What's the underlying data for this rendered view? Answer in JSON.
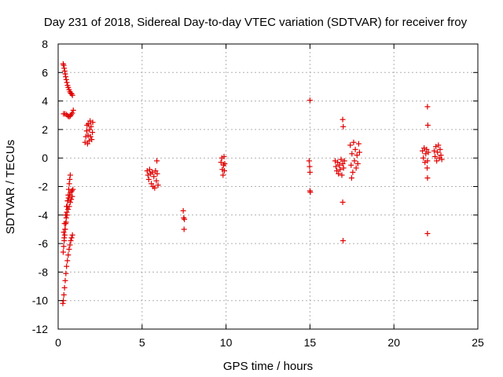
{
  "chart_data": {
    "type": "scatter",
    "title": "Day 231 of 2018, Sidereal Day-to-day VTEC variation (SDTVAR) for receiver froy",
    "xlabel": "GPS time / hours",
    "ylabel": "SDTVAR / TECUs",
    "xlim": [
      0,
      25
    ],
    "ylim": [
      -12,
      8
    ],
    "grid": true,
    "marker": "plus",
    "color": "#e00000",
    "x_ticks": [
      "0",
      "5",
      "10",
      "15",
      "20",
      "25"
    ],
    "y_ticks": [
      "8",
      "6",
      "4",
      "2",
      "0",
      "-2",
      "-4",
      "-6",
      "-8",
      "-10",
      "-12"
    ],
    "series": [
      {
        "name": "SDTVAR",
        "points": [
          [
            0.3,
            6.6
          ],
          [
            0.33,
            6.5
          ],
          [
            0.36,
            6.3
          ],
          [
            0.39,
            6.1
          ],
          [
            0.42,
            5.9
          ],
          [
            0.45,
            5.7
          ],
          [
            0.48,
            5.5
          ],
          [
            0.52,
            5.3
          ],
          [
            0.56,
            5.1
          ],
          [
            0.6,
            4.95
          ],
          [
            0.65,
            4.8
          ],
          [
            0.7,
            4.65
          ],
          [
            0.75,
            4.55
          ],
          [
            0.8,
            4.5
          ],
          [
            0.85,
            4.4
          ],
          [
            0.32,
            3.1
          ],
          [
            0.4,
            3.1
          ],
          [
            0.5,
            3.05
          ],
          [
            0.58,
            2.95
          ],
          [
            0.65,
            2.9
          ],
          [
            0.72,
            2.95
          ],
          [
            0.78,
            3.05
          ],
          [
            0.84,
            3.15
          ],
          [
            0.9,
            3.35
          ],
          [
            0.3,
            -6.6
          ],
          [
            0.33,
            -6.2
          ],
          [
            0.36,
            -5.8
          ],
          [
            0.39,
            -5.4
          ],
          [
            0.42,
            -5.0
          ],
          [
            0.45,
            -4.6
          ],
          [
            0.48,
            -4.2
          ],
          [
            0.51,
            -3.8
          ],
          [
            0.54,
            -3.4
          ],
          [
            0.57,
            -3.0
          ],
          [
            0.6,
            -2.6
          ],
          [
            0.63,
            -2.2
          ],
          [
            0.66,
            -1.8
          ],
          [
            0.69,
            -1.5
          ],
          [
            0.72,
            -1.2
          ],
          [
            0.33,
            -5.2
          ],
          [
            0.38,
            -4.6
          ],
          [
            0.44,
            -4.0
          ],
          [
            0.5,
            -3.4
          ],
          [
            0.56,
            -3.0
          ],
          [
            0.62,
            -2.8
          ],
          [
            0.68,
            -2.6
          ],
          [
            0.75,
            -2.4
          ],
          [
            0.82,
            -2.3
          ],
          [
            0.88,
            -2.2
          ],
          [
            0.28,
            -10.2
          ],
          [
            0.31,
            -10.0
          ],
          [
            0.34,
            -9.6
          ],
          [
            0.38,
            -9.1
          ],
          [
            0.42,
            -8.6
          ],
          [
            0.46,
            -8.1
          ],
          [
            0.5,
            -7.6
          ],
          [
            0.55,
            -7.2
          ],
          [
            0.6,
            -6.8
          ],
          [
            0.65,
            -6.4
          ],
          [
            0.7,
            -6.1
          ],
          [
            0.75,
            -5.8
          ],
          [
            0.8,
            -5.6
          ],
          [
            0.85,
            -5.4
          ],
          [
            0.36,
            -5.6
          ],
          [
            0.41,
            -5.0
          ],
          [
            0.47,
            -4.5
          ],
          [
            0.53,
            -4.0
          ],
          [
            0.59,
            -3.6
          ],
          [
            0.66,
            -3.4
          ],
          [
            0.72,
            -3.1
          ],
          [
            0.78,
            -2.9
          ],
          [
            0.84,
            -2.7
          ],
          [
            1.6,
            1.1
          ],
          [
            1.65,
            1.5
          ],
          [
            1.7,
            1.9
          ],
          [
            1.72,
            2.3
          ],
          [
            1.75,
            1.0
          ],
          [
            1.78,
            1.6
          ],
          [
            1.8,
            2.4
          ],
          [
            1.84,
            1.2
          ],
          [
            1.87,
            2.0
          ],
          [
            1.9,
            2.6
          ],
          [
            1.93,
            1.5
          ],
          [
            1.96,
            2.2
          ],
          [
            2.0,
            1.3
          ],
          [
            2.04,
            1.8
          ],
          [
            2.06,
            2.5
          ],
          [
            5.3,
            -0.9
          ],
          [
            5.35,
            -1.2
          ],
          [
            5.4,
            -1.5
          ],
          [
            5.45,
            -0.8
          ],
          [
            5.5,
            -1.1
          ],
          [
            5.55,
            -1.8
          ],
          [
            5.6,
            -1.0
          ],
          [
            5.65,
            -2.0
          ],
          [
            5.7,
            -1.3
          ],
          [
            5.75,
            -2.1
          ],
          [
            5.8,
            -0.9
          ],
          [
            5.85,
            -1.6
          ],
          [
            5.9,
            -1.1
          ],
          [
            5.95,
            -1.9
          ],
          [
            5.88,
            -0.2
          ],
          [
            7.45,
            -3.7
          ],
          [
            7.48,
            -4.2
          ],
          [
            7.52,
            -4.3
          ],
          [
            7.5,
            -5.0
          ],
          [
            9.7,
            -0.3
          ],
          [
            9.75,
            0.0
          ],
          [
            9.78,
            -0.8
          ],
          [
            9.82,
            -1.2
          ],
          [
            9.85,
            -0.5
          ],
          [
            9.88,
            0.1
          ],
          [
            9.9,
            -0.9
          ],
          [
            9.92,
            -0.4
          ],
          [
            14.95,
            -0.2
          ],
          [
            14.98,
            -0.6
          ],
          [
            15.0,
            -1.0
          ],
          [
            15.0,
            -2.3
          ],
          [
            15.02,
            -2.4
          ],
          [
            15.0,
            4.05
          ],
          [
            16.5,
            -0.2
          ],
          [
            16.55,
            -0.6
          ],
          [
            16.6,
            -0.9
          ],
          [
            16.65,
            -0.3
          ],
          [
            16.7,
            -1.1
          ],
          [
            16.75,
            -0.5
          ],
          [
            16.8,
            -0.8
          ],
          [
            16.85,
            -0.1
          ],
          [
            16.9,
            -1.2
          ],
          [
            16.95,
            -0.4
          ],
          [
            17.0,
            -0.7
          ],
          [
            17.05,
            -0.2
          ],
          [
            16.95,
            2.7
          ],
          [
            16.98,
            2.2
          ],
          [
            16.95,
            -3.1
          ],
          [
            16.97,
            -5.8
          ],
          [
            17.4,
            0.9
          ],
          [
            17.45,
            -0.5
          ],
          [
            17.5,
            0.3
          ],
          [
            17.55,
            -1.0
          ],
          [
            17.6,
            1.1
          ],
          [
            17.65,
            -0.2
          ],
          [
            17.7,
            0.6
          ],
          [
            17.75,
            -0.7
          ],
          [
            17.8,
            0.2
          ],
          [
            17.85,
            -0.4
          ],
          [
            17.9,
            1.0
          ],
          [
            17.95,
            0.4
          ],
          [
            17.48,
            -1.4
          ],
          [
            21.7,
            0.5
          ],
          [
            21.75,
            0.0
          ],
          [
            21.8,
            0.7
          ],
          [
            21.85,
            -0.3
          ],
          [
            21.9,
            0.3
          ],
          [
            21.95,
            0.6
          ],
          [
            22.0,
            -0.2
          ],
          [
            22.05,
            0.4
          ],
          [
            22.0,
            3.6
          ],
          [
            22.02,
            2.3
          ],
          [
            21.98,
            -0.7
          ],
          [
            22.0,
            -1.4
          ],
          [
            22.0,
            -5.3
          ],
          [
            22.4,
            0.5
          ],
          [
            22.45,
            0.1
          ],
          [
            22.5,
            0.8
          ],
          [
            22.55,
            -0.2
          ],
          [
            22.6,
            0.4
          ],
          [
            22.65,
            0.9
          ],
          [
            22.7,
            0.0
          ],
          [
            22.75,
            0.6
          ],
          [
            22.8,
            0.2
          ],
          [
            22.85,
            -0.1
          ]
        ]
      }
    ]
  }
}
